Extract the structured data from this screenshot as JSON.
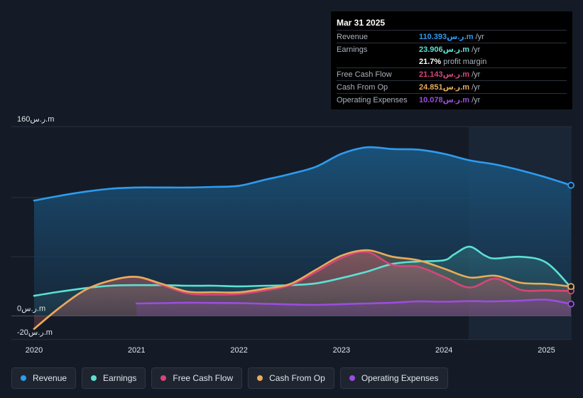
{
  "tooltip": {
    "date": "Mar 31 2025",
    "rows": [
      {
        "label": "Revenue",
        "value": "110.393ر.س.m",
        "unit": "/yr",
        "color": "#2d9cf0"
      },
      {
        "label": "Earnings",
        "value": "23.906ر.س.m",
        "unit": "/yr",
        "color": "#5de0d2"
      },
      {
        "label": "",
        "value": "21.7%",
        "unit": "profit margin",
        "color": "#ffffff"
      },
      {
        "label": "Free Cash Flow",
        "value": "21.143ر.س.m",
        "unit": "/yr",
        "color": "#d6457a"
      },
      {
        "label": "Cash From Op",
        "value": "24.851ر.س.m",
        "unit": "/yr",
        "color": "#e9ab5b"
      },
      {
        "label": "Operating Expenses",
        "value": "10.078ر.س.m",
        "unit": "/yr",
        "color": "#9b4de0"
      }
    ]
  },
  "legend": [
    {
      "label": "Revenue",
      "color": "#2d9cf0"
    },
    {
      "label": "Earnings",
      "color": "#5de0d2"
    },
    {
      "label": "Free Cash Flow",
      "color": "#d6457a"
    },
    {
      "label": "Cash From Op",
      "color": "#e9ab5b"
    },
    {
      "label": "Operating Expenses",
      "color": "#9b4de0"
    }
  ],
  "chart_data": {
    "type": "area",
    "ylim": [
      -20,
      160
    ],
    "ytick_labels": [
      {
        "value": 160,
        "label": "160ر.س.m"
      },
      {
        "value": 0,
        "label": "0ر.س.m"
      },
      {
        "value": -20,
        "label": "-20ر.س.m"
      }
    ],
    "xlim": [
      2019.78,
      2025.24
    ],
    "xtick_labels": [
      "2020",
      "2021",
      "2022",
      "2023",
      "2024",
      "2025"
    ],
    "forecast_start": 2024.24,
    "series": [
      {
        "name": "Revenue",
        "color": "#2d9cf0",
        "x": [
          2020.0,
          2020.25,
          2020.5,
          2020.75,
          2021.0,
          2021.25,
          2021.5,
          2021.75,
          2022.0,
          2022.25,
          2022.5,
          2022.75,
          2023.0,
          2023.25,
          2023.5,
          2023.75,
          2024.0,
          2024.25,
          2024.5,
          2024.75,
          2025.0,
          2025.24
        ],
        "values": [
          97.5,
          101.5,
          105,
          107.5,
          108.5,
          108.5,
          108.5,
          109.0,
          110.0,
          115.0,
          120.0,
          126.0,
          137.0,
          142.5,
          141.0,
          140.5,
          137.0,
          131.5,
          128.0,
          123.0,
          117.0,
          110.393
        ]
      },
      {
        "name": "Earnings",
        "color": "#5de0d2",
        "x": [
          2020.0,
          2020.25,
          2020.5,
          2020.75,
          2021.0,
          2021.25,
          2021.5,
          2021.75,
          2022.0,
          2022.25,
          2022.5,
          2022.75,
          2023.0,
          2023.25,
          2023.5,
          2023.75,
          2024.0,
          2024.1,
          2024.25,
          2024.4,
          2024.5,
          2024.75,
          2025.0,
          2025.24
        ],
        "values": [
          17,
          20.5,
          23.5,
          25.5,
          26.0,
          26.0,
          25.5,
          25.5,
          25.0,
          25.5,
          26.0,
          27.5,
          32.0,
          37.5,
          44.0,
          46.0,
          47.0,
          52.0,
          58.5,
          51.0,
          48.5,
          50.0,
          45.0,
          23.906
        ]
      },
      {
        "name": "Free Cash Flow",
        "color": "#d6457a",
        "x": [
          2020.0,
          2020.25,
          2020.5,
          2020.75,
          2021.0,
          2021.25,
          2021.5,
          2021.75,
          2022.0,
          2022.25,
          2022.5,
          2022.75,
          2023.0,
          2023.25,
          2023.5,
          2023.75,
          2024.0,
          2024.25,
          2024.5,
          2024.75,
          2025.0,
          2025.24
        ],
        "values": [
          -11.0,
          7.0,
          22.0,
          30.0,
          33.0,
          26.0,
          19.0,
          18.0,
          18.5,
          21.5,
          26.0,
          37.0,
          49.0,
          54.0,
          43.0,
          41.5,
          33.0,
          24.0,
          31.5,
          22.0,
          21.5,
          21.143
        ]
      },
      {
        "name": "Cash From Op",
        "color": "#e9ab5b",
        "x": [
          2020.0,
          2020.25,
          2020.5,
          2020.75,
          2021.0,
          2021.25,
          2021.5,
          2021.75,
          2022.0,
          2022.25,
          2022.5,
          2022.75,
          2023.0,
          2023.25,
          2023.5,
          2023.75,
          2024.0,
          2024.25,
          2024.5,
          2024.75,
          2025.0,
          2025.24
        ],
        "values": [
          -11.0,
          7.0,
          22.0,
          30.0,
          33.0,
          27.0,
          20.5,
          20.0,
          20.0,
          23.0,
          27.0,
          39.0,
          51.0,
          55.5,
          50.0,
          47.0,
          40.0,
          32.5,
          34.0,
          28.0,
          27.0,
          24.851
        ]
      },
      {
        "name": "Operating Expenses",
        "color": "#9b4de0",
        "x": [
          2021.0,
          2021.25,
          2021.5,
          2021.75,
          2022.0,
          2022.25,
          2022.5,
          2022.75,
          2023.0,
          2023.25,
          2023.5,
          2023.75,
          2024.0,
          2024.25,
          2024.5,
          2024.75,
          2025.0,
          2025.24
        ],
        "values": [
          10.5,
          10.8,
          11.2,
          11.0,
          10.8,
          10.3,
          9.7,
          9.3,
          10.0,
          10.5,
          11.2,
          12.3,
          12.0,
          12.5,
          12.3,
          13.0,
          13.7,
          10.078
        ]
      }
    ]
  }
}
